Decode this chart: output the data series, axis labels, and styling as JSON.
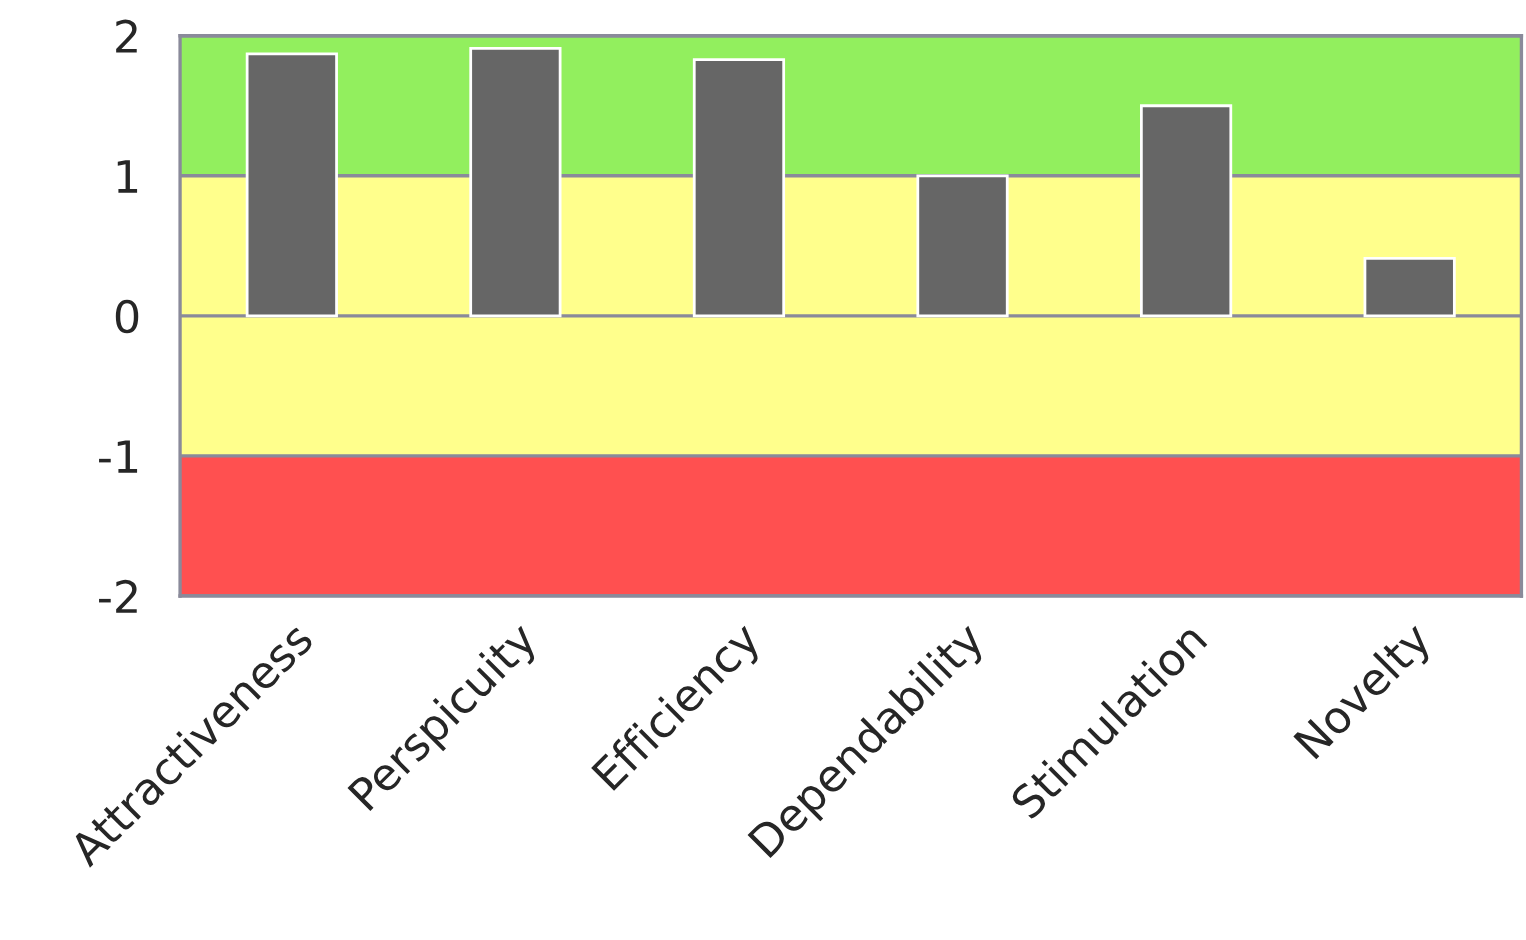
{
  "chart_data": {
    "type": "bar",
    "categories": [
      "Attractiveness",
      "Perspicuity",
      "Efficiency",
      "Dependability",
      "Stimulation",
      "Novelty"
    ],
    "values": [
      1.87,
      1.91,
      1.83,
      1.0,
      1.5,
      0.41
    ],
    "color": "#666666",
    "ylim": [
      -2,
      2
    ],
    "yticks": [
      -2,
      -1,
      0,
      1,
      2
    ],
    "grid": "y",
    "bands": [
      {
        "axis": "y",
        "from": 1,
        "to": 2,
        "color": "#92ef5e"
      },
      {
        "axis": "y",
        "from": -1,
        "to": 1,
        "color": "#ffff8c"
      },
      {
        "axis": "y",
        "from": -2,
        "to": -1,
        "color": "#ff5050"
      }
    ]
  }
}
